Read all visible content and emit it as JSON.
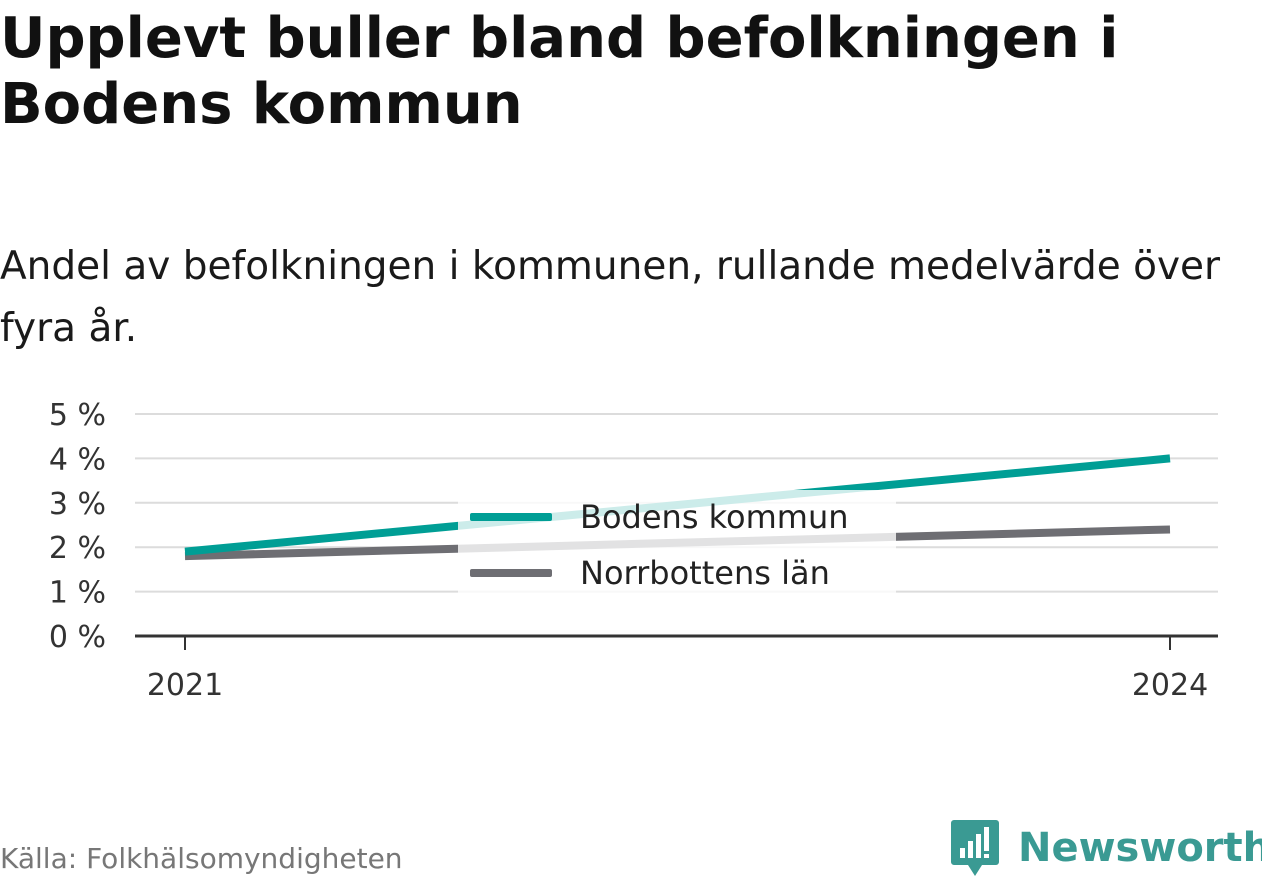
{
  "title": "Upplevt buller bland befolkningen i Bodens kommun",
  "subtitle": "Andel av befolkningen i kommunen, rullande medelvärde över fyra år.",
  "source": "Källa: Folkhälsomyndigheten",
  "brand": {
    "name": "Newsworthy",
    "icon": "newsworthy-logo-icon",
    "color": "#3a9a93"
  },
  "chart_data": {
    "type": "line",
    "x": [
      2021,
      2024
    ],
    "x_tick_labels": [
      "2021",
      "2024"
    ],
    "series": [
      {
        "name": "Bodens kommun",
        "values": [
          1.9,
          4.0
        ],
        "color": "#009e95"
      },
      {
        "name": "Norrbottens län",
        "values": [
          1.8,
          2.4
        ],
        "color": "#6e6e73"
      }
    ],
    "ylim": [
      0,
      5
    ],
    "y_ticks": [
      0,
      1,
      2,
      3,
      4,
      5
    ],
    "y_tick_labels": [
      "0 %",
      "1 %",
      "2 %",
      "3 %",
      "4 %",
      "5 %"
    ],
    "grid": true,
    "legend_position": "center"
  }
}
